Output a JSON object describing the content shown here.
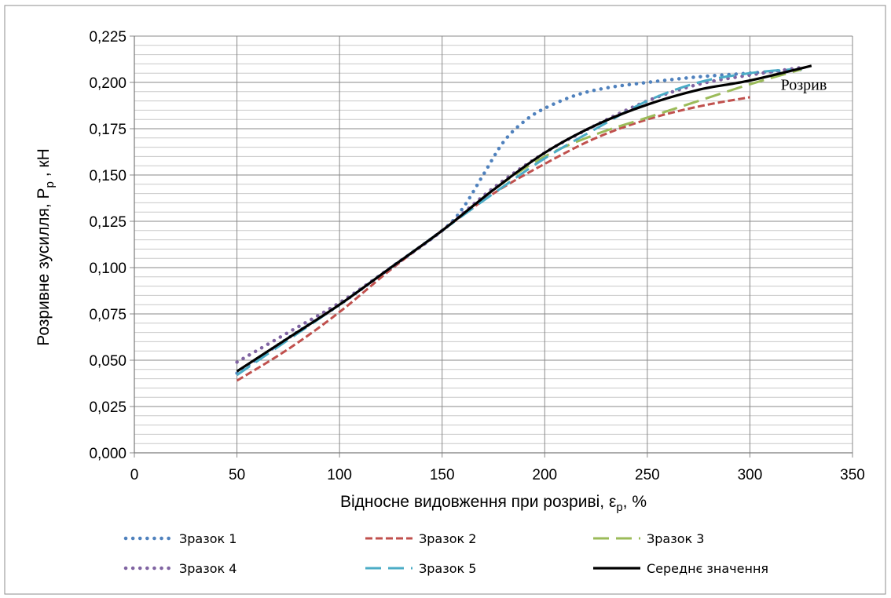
{
  "chart_data": {
    "type": "line",
    "xlabel_main": "Відносне видовження при розриві, ε",
    "xlabel_sub": "р",
    "xlabel_tail": ", %",
    "ylabel_main": "Розривне зусилля, Р",
    "ylabel_sub": "р",
    "ylabel_tail": " , кН",
    "xlim": [
      0,
      350
    ],
    "ylim": [
      0,
      0.225
    ],
    "xticks": [
      0,
      50,
      100,
      150,
      200,
      250,
      300,
      350
    ],
    "xtick_labels": [
      "0",
      "50",
      "100",
      "150",
      "200",
      "250",
      "300",
      "350"
    ],
    "yticks": [
      0,
      0.025,
      0.05,
      0.075,
      0.1,
      0.125,
      0.15,
      0.175,
      0.2,
      0.225
    ],
    "ytick_labels": [
      "0,000",
      "0,025",
      "0,050",
      "0,075",
      "0,100",
      "0,125",
      "0,150",
      "0,175",
      "0,200",
      "0,225"
    ],
    "y_minor_step": 0.005,
    "x_major_step": 50,
    "grid": true,
    "legend_position": "bottom",
    "annotation": {
      "text": "Розрив",
      "x": 315,
      "y": 0.196
    },
    "series": [
      {
        "name": "Зразок 1",
        "color": "#4F81BD",
        "style": "dotted",
        "x": [
          50,
          75,
          100,
          125,
          150,
          160,
          170,
          180,
          190,
          200,
          215,
          230,
          250,
          275,
          300,
          325
        ],
        "y": [
          0.043,
          0.062,
          0.08,
          0.1,
          0.12,
          0.132,
          0.15,
          0.168,
          0.179,
          0.186,
          0.193,
          0.197,
          0.2,
          0.203,
          0.205,
          0.207
        ]
      },
      {
        "name": "Зразок 2",
        "color": "#C0504D",
        "style": "dashed",
        "x": [
          50,
          75,
          100,
          125,
          150,
          175,
          200,
          225,
          250,
          275,
          300
        ],
        "y": [
          0.039,
          0.056,
          0.076,
          0.099,
          0.12,
          0.14,
          0.156,
          0.17,
          0.18,
          0.187,
          0.192
        ]
      },
      {
        "name": "Зразок 3",
        "color": "#9BBB59",
        "style": "longdash",
        "x": [
          50,
          75,
          100,
          125,
          150,
          175,
          200,
          225,
          250,
          275,
          300,
          325
        ],
        "y": [
          0.044,
          0.062,
          0.08,
          0.1,
          0.12,
          0.142,
          0.16,
          0.172,
          0.181,
          0.19,
          0.199,
          0.207
        ]
      },
      {
        "name": "Зразок 4",
        "color": "#8064A2",
        "style": "dotted",
        "x": [
          50,
          75,
          100,
          125,
          150,
          175,
          200,
          225,
          250,
          275,
          300,
          325
        ],
        "y": [
          0.049,
          0.065,
          0.081,
          0.1,
          0.12,
          0.143,
          0.162,
          0.177,
          0.19,
          0.199,
          0.204,
          0.208
        ]
      },
      {
        "name": "Зразок 5",
        "color": "#4BACC6",
        "style": "longdash",
        "x": [
          50,
          75,
          100,
          125,
          150,
          175,
          200,
          225,
          250,
          275,
          300,
          320
        ],
        "y": [
          0.042,
          0.061,
          0.08,
          0.1,
          0.12,
          0.14,
          0.159,
          0.175,
          0.19,
          0.2,
          0.205,
          0.207
        ]
      },
      {
        "name": "Середнє значення",
        "color": "#000000",
        "style": "solid",
        "x": [
          50,
          75,
          100,
          125,
          150,
          175,
          200,
          225,
          250,
          275,
          300,
          330
        ],
        "y": [
          0.044,
          0.062,
          0.08,
          0.1,
          0.12,
          0.142,
          0.162,
          0.177,
          0.188,
          0.196,
          0.201,
          0.209
        ]
      }
    ]
  }
}
